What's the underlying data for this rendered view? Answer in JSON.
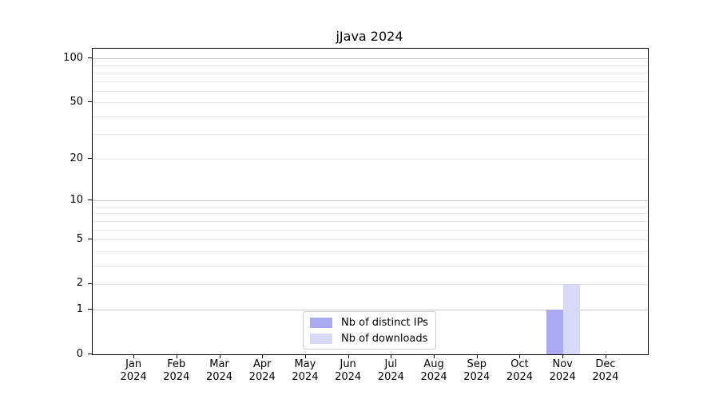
{
  "chart_data": {
    "type": "bar",
    "title": "jJava 2024",
    "categories": [
      "Jan",
      "Feb",
      "Mar",
      "Apr",
      "May",
      "Jun",
      "Jul",
      "Aug",
      "Sep",
      "Oct",
      "Nov",
      "Dec"
    ],
    "year_label": "2024",
    "series": [
      {
        "name": "Nb of distinct IPs",
        "color": "#a9a9f0",
        "values": [
          0,
          0,
          0,
          0,
          0,
          0,
          0,
          0,
          0,
          0,
          1,
          0
        ]
      },
      {
        "name": "Nb of downloads",
        "color": "#d8d8f8",
        "values": [
          0,
          0,
          0,
          0,
          0,
          0,
          0,
          0,
          0,
          0,
          2,
          0
        ]
      }
    ],
    "xlabel": "",
    "ylabel": "",
    "y_ticks": [
      0,
      1,
      2,
      5,
      10,
      20,
      50,
      100
    ],
    "ylim": [
      0,
      100
    ],
    "y_scale": "log1p",
    "grid": {
      "major_lines": [
        1,
        10,
        100
      ],
      "minor_lines": [
        2,
        3,
        4,
        5,
        6,
        7,
        8,
        9,
        20,
        30,
        40,
        50,
        60,
        70,
        80,
        90
      ]
    },
    "legend_position": "bottom-center"
  }
}
